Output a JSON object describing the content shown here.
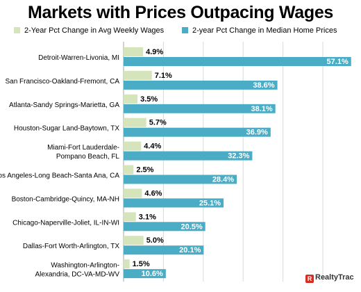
{
  "chart_data": {
    "type": "bar",
    "orientation": "horizontal",
    "title": "Markets with Prices Outpacing Wages",
    "categories": [
      [
        "Detroit-Warren-Livonia, MI"
      ],
      [
        "San Francisco-Oakland-Fremont, CA"
      ],
      [
        "Atlanta-Sandy Springs-Marietta, GA"
      ],
      [
        "Houston-Sugar Land-Baytown, TX"
      ],
      [
        "Miami-Fort Lauderdale-",
        "Pompano Beach, FL"
      ],
      [
        "Los Angeles-Long Beach-Santa Ana, CA"
      ],
      [
        "Boston-Cambridge-Quincy, MA-NH"
      ],
      [
        "Chicago-Naperville-Joliet, IL-IN-WI"
      ],
      [
        "Dallas-Fort Worth-Arlington, TX"
      ],
      [
        "Washington-Arlington-",
        "Alexandria, DC-VA-MD-WV"
      ]
    ],
    "series": [
      {
        "name": "2-Year Pct Change in Avg Weekly Wages",
        "color": "#d6e4bc",
        "values": [
          4.9,
          7.1,
          3.5,
          5.7,
          4.4,
          2.5,
          4.6,
          3.1,
          5.0,
          1.5
        ],
        "labels": [
          "4.9%",
          "7.1%",
          "3.5%",
          "5.7%",
          "4.4%",
          "2.5%",
          "4.6%",
          "3.1%",
          "5.0%",
          "1.5%"
        ]
      },
      {
        "name": "2-year Pct Change in Median Home Prices",
        "color": "#4bacc6",
        "values": [
          57.1,
          38.6,
          38.1,
          36.9,
          32.3,
          28.4,
          25.1,
          20.5,
          20.1,
          10.6
        ],
        "labels": [
          "57.1%",
          "38.6%",
          "38.1%",
          "36.9%",
          "32.3%",
          "28.4%",
          "25.1%",
          "20.5%",
          "20.1%",
          "10.6%"
        ]
      }
    ],
    "xlim": [
      0,
      60
    ],
    "grid": true,
    "legend_position": "top"
  },
  "logo_text": "RealtyTrac"
}
